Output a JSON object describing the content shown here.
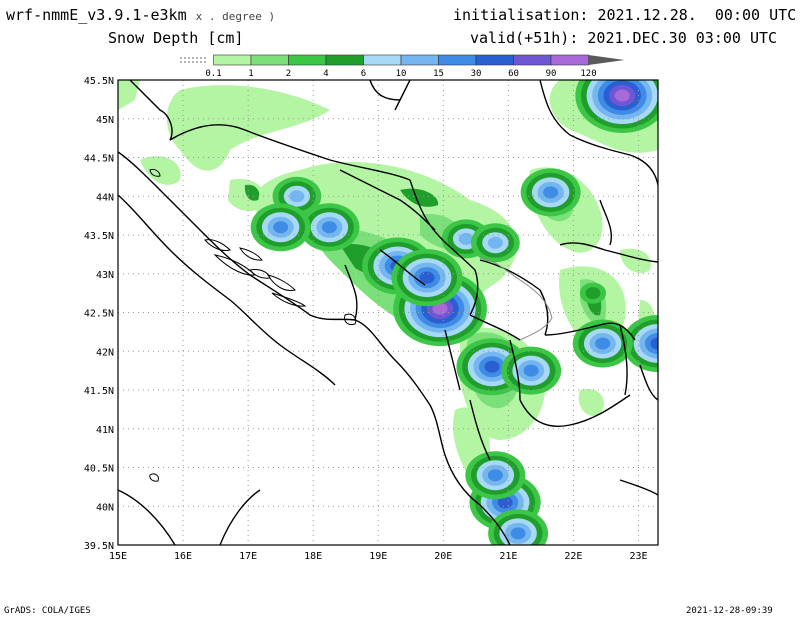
{
  "header": {
    "model": "wrf-nmmE_v3.9.1-e3km",
    "model_suffix": "x . degree )",
    "variable": "Snow Depth [cm]",
    "initialisation": "initialisation: 2021.12.28.  00:00 UTC",
    "valid": "valid(+51h): 2021.DEC.30 03:00 UTC"
  },
  "legend": {
    "labels": [
      "0.1",
      "1",
      "2",
      "4",
      "6",
      "10",
      "15",
      "30",
      "60",
      "90",
      "120"
    ],
    "colors": [
      "#ffffff",
      "#b4f5a3",
      "#7ce07a",
      "#3cc645",
      "#1f9e2c",
      "#a7d9f5",
      "#74b6f0",
      "#3e8ce6",
      "#2a5fd2",
      "#6f57d4",
      "#a86ad9",
      "#5a5a5a"
    ]
  },
  "axes": {
    "lon_labels": [
      "15E",
      "16E",
      "17E",
      "18E",
      "19E",
      "20E",
      "21E",
      "22E",
      "23E"
    ],
    "lat_labels": [
      "45.5N",
      "45N",
      "44.5N",
      "44N",
      "43.5N",
      "43N",
      "42.5N",
      "42N",
      "41.5N",
      "41N",
      "40.5N",
      "40N",
      "39.5N"
    ],
    "lon_range": [
      15,
      23.3
    ],
    "lat_range": [
      39.5,
      45.5
    ]
  },
  "snow_cells": [
    {
      "lon": 19.95,
      "lat": 42.55,
      "level": 10
    },
    {
      "lon": 19.3,
      "lat": 43.1,
      "level": 8
    },
    {
      "lon": 19.75,
      "lat": 42.95,
      "level": 8
    },
    {
      "lon": 20.75,
      "lat": 41.8,
      "level": 8
    },
    {
      "lon": 20.95,
      "lat": 40.05,
      "level": 8
    },
    {
      "lon": 22.75,
      "lat": 45.3,
      "level": 10
    },
    {
      "lon": 23.3,
      "lat": 42.1,
      "level": 8
    },
    {
      "lon": 20.35,
      "lat": 43.45,
      "level": 6
    },
    {
      "lon": 20.8,
      "lat": 43.4,
      "level": 6
    },
    {
      "lon": 21.65,
      "lat": 44.05,
      "level": 7
    },
    {
      "lon": 17.75,
      "lat": 44.0,
      "level": 6
    },
    {
      "lon": 18.25,
      "lat": 43.6,
      "level": 7
    },
    {
      "lon": 17.5,
      "lat": 43.6,
      "level": 7
    },
    {
      "lon": 21.35,
      "lat": 41.75,
      "level": 7
    },
    {
      "lon": 22.45,
      "lat": 42.1,
      "level": 7
    },
    {
      "lon": 20.8,
      "lat": 40.4,
      "level": 7
    },
    {
      "lon": 21.15,
      "lat": 39.65,
      "level": 7
    },
    {
      "lon": 22.3,
      "lat": 42.75,
      "level": 4
    }
  ],
  "footer": {
    "left": "GrADS: COLA/IGES",
    "right": "2021-12-28-09:39"
  }
}
